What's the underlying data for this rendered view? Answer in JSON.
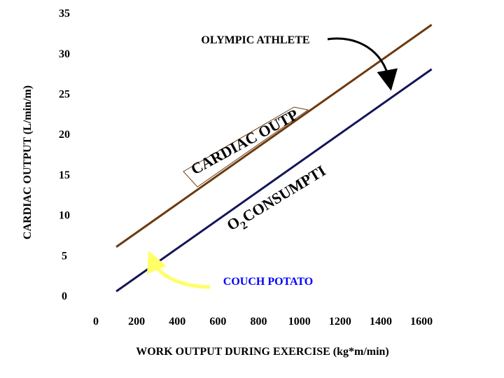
{
  "chart_data": {
    "type": "line",
    "title": "",
    "xlabel": "WORK OUTPUT DURING EXERCISE (kg*m/min)",
    "ylabel": "CARDIAC OUTPUT (L/min/m)",
    "xlim": [
      0,
      1600
    ],
    "ylim": [
      0,
      35
    ],
    "x_ticks": [
      0,
      200,
      400,
      600,
      800,
      1000,
      1200,
      1400,
      1600
    ],
    "y_ticks": [
      0,
      5,
      10,
      15,
      20,
      25,
      30,
      35
    ],
    "grid": false,
    "series": [
      {
        "name": "OLYMPIC ATHLETE",
        "color": "#6b3a10",
        "x": [
          100,
          1650
        ],
        "y": [
          6,
          33.5
        ]
      },
      {
        "name": "COUCH POTATO",
        "color": "#14145a",
        "x": [
          100,
          1650
        ],
        "y": [
          0.5,
          28
        ]
      }
    ],
    "annotations": {
      "athlete_label": "OLYMPIC ATHLETE",
      "couch_label": "COUCH POTATO",
      "cardiac_band": "CARDIAC OUTPUT",
      "o2_prefix": "O",
      "o2_subscript": "2",
      "o2_band": "CONSUMPTION"
    },
    "colors": {
      "athlete_text": "#000000",
      "couch_text": "#0000ff",
      "athlete_arrow": "#000000",
      "couch_arrow": "#ffff66",
      "band_stroke": "#6b3a10"
    }
  }
}
